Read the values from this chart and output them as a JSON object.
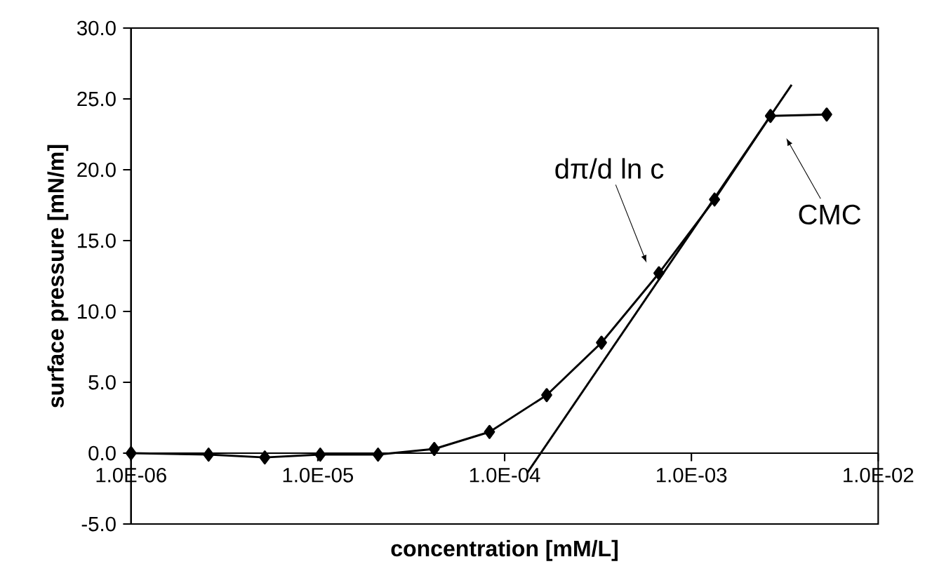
{
  "chart_data": {
    "type": "line",
    "xlabel": "concentration [mM/L]",
    "ylabel": "surface pressure [mN/m]",
    "log": "x",
    "marker": "diamond",
    "xlim": [
      1e-06,
      0.01
    ],
    "ylim": [
      -5,
      30
    ],
    "xticks": [
      {
        "value": 1e-06,
        "label": "1.0E-06"
      },
      {
        "value": 1e-05,
        "label": "1.0E-05"
      },
      {
        "value": 0.0001,
        "label": "1.0E-04"
      },
      {
        "value": 0.001,
        "label": "1.0E-03"
      },
      {
        "value": 0.01,
        "label": "1.0E-02"
      }
    ],
    "yticks": [
      {
        "value": -5,
        "label": "-5.0"
      },
      {
        "value": 0,
        "label": "0.0"
      },
      {
        "value": 5,
        "label": "5.0"
      },
      {
        "value": 10,
        "label": "10.0"
      },
      {
        "value": 15,
        "label": "15.0"
      },
      {
        "value": 20,
        "label": "20.0"
      },
      {
        "value": 25,
        "label": "25.0"
      },
      {
        "value": 30,
        "label": "30.0"
      }
    ],
    "series": [
      {
        "color": "#000000",
        "x": [
          1e-06,
          2.6e-06,
          5.2e-06,
          1.03e-05,
          2.1e-05,
          4.2e-05,
          8.3e-05,
          0.000168,
          0.00033,
          0.00067,
          0.00133,
          0.00265,
          0.0053
        ],
        "values": [
          0.0,
          -0.1,
          -0.3,
          -0.1,
          -0.1,
          0.3,
          1.5,
          4.1,
          7.8,
          12.7,
          17.9,
          23.8,
          23.9
        ]
      },
      {
        "type": "line",
        "marker": "none",
        "color": "#000000",
        "x": [
          0.000132,
          0.00344
        ],
        "values": [
          -1.4,
          26.0
        ]
      }
    ],
    "annotations": [
      "dπ/d ln c",
      "CMC"
    ]
  }
}
